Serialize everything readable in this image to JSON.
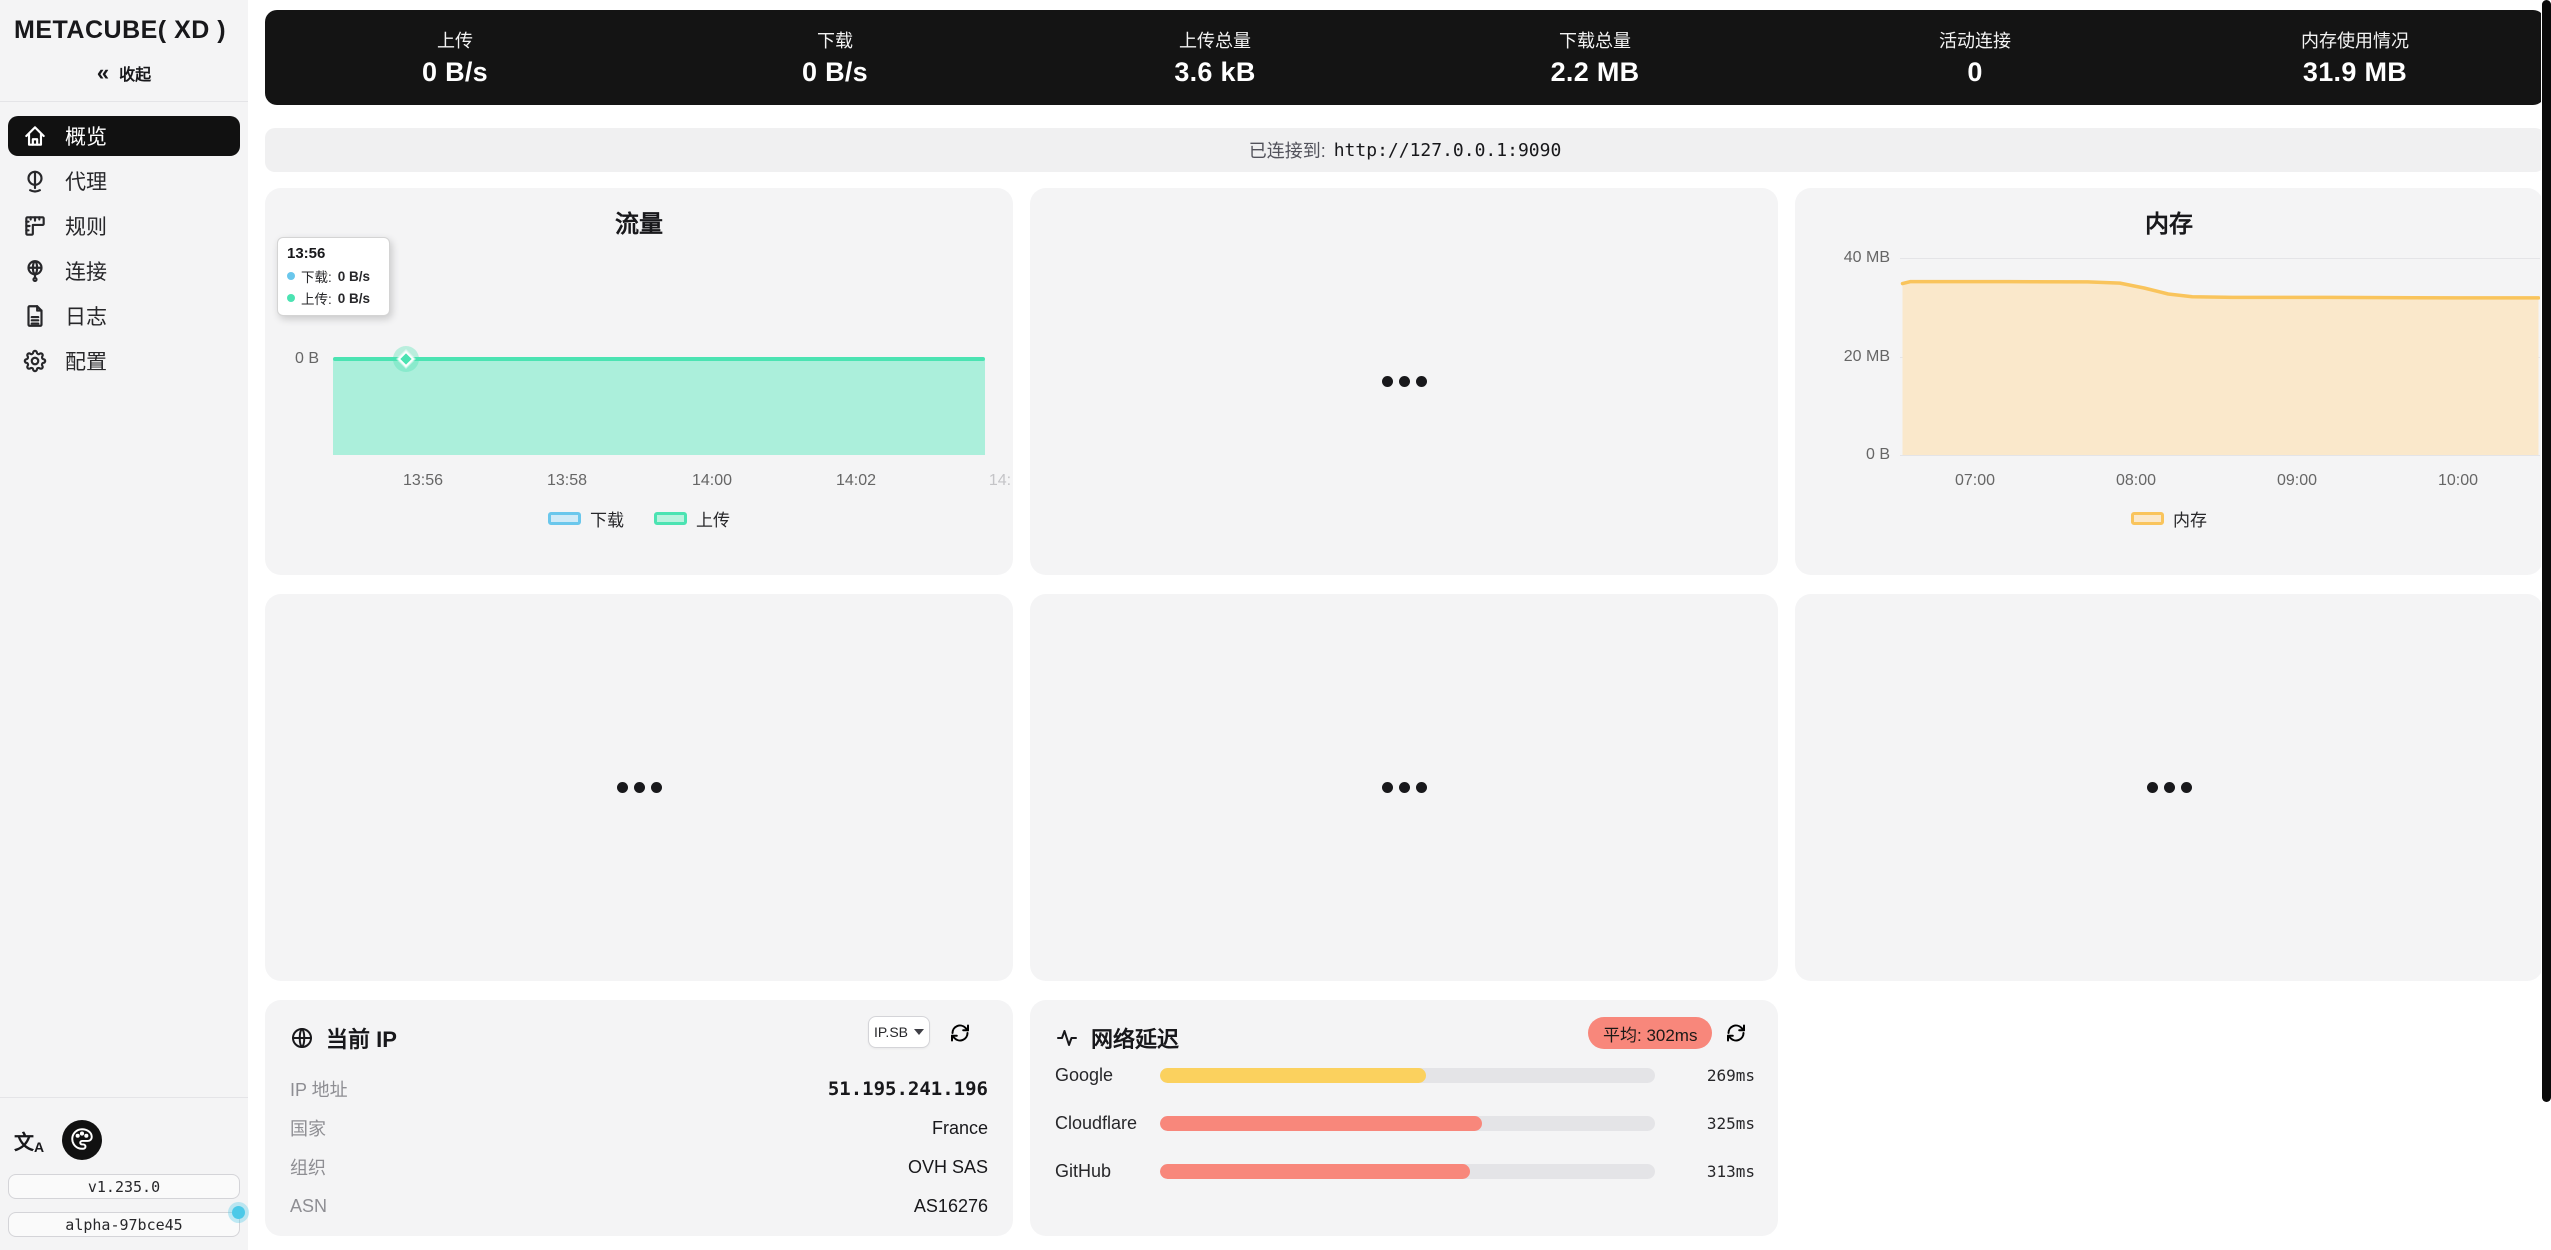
{
  "app": {
    "title": "METACUBE( XD )",
    "collapse_label": "收起"
  },
  "sidebar": {
    "items": [
      {
        "label": "概览",
        "icon": "home-icon",
        "active": true
      },
      {
        "label": "代理",
        "icon": "globe-stand-icon",
        "active": false
      },
      {
        "label": "规则",
        "icon": "ruler-icon",
        "active": false
      },
      {
        "label": "连接",
        "icon": "world-network-icon",
        "active": false
      },
      {
        "label": "日志",
        "icon": "file-text-icon",
        "active": false
      },
      {
        "label": "配置",
        "icon": "gear-icon",
        "active": false
      }
    ],
    "footer": {
      "version": "v1.235.0",
      "build": "alpha-97bce45"
    }
  },
  "statsbar": {
    "items": [
      {
        "label": "上传",
        "value": "0 B/s"
      },
      {
        "label": "下载",
        "value": "0 B/s"
      },
      {
        "label": "上传总量",
        "value": "3.6 kB"
      },
      {
        "label": "下载总量",
        "value": "2.2 MB"
      },
      {
        "label": "活动连接",
        "value": "0"
      },
      {
        "label": "内存使用情况",
        "value": "31.9 MB"
      }
    ]
  },
  "connection": {
    "prefix": "已连接到:",
    "url": "http://127.0.0.1:9090"
  },
  "ip_card": {
    "title": "当前 IP",
    "provider": "IP.SB",
    "rows": [
      {
        "label": "IP 地址",
        "value": "51.195.241.196"
      },
      {
        "label": "国家",
        "value": "France"
      },
      {
        "label": "组织",
        "value": "OVH SAS"
      },
      {
        "label": "ASN",
        "value": "AS16276"
      }
    ]
  },
  "colors": {
    "active_item_bg": "#111111",
    "topbar_bg": "#141414",
    "accent_teal": "#4be3b2",
    "accent_blue": "#6ac7ec",
    "accent_amber": "#f9c45c",
    "accent_yellow": "#fbd15e",
    "accent_salmon": "#f8877b",
    "update_dot": "#4cc9e8"
  },
  "chart_data": [
    {
      "id": "traffic",
      "type": "area",
      "title": "流量",
      "y_label": "0 B",
      "x_ticks": [
        "13:56",
        "13:58",
        "14:00",
        "14:02",
        "14:"
      ],
      "series": [
        {
          "name": "下载",
          "unit": "B/s",
          "color": "#6ac7ec",
          "fill": "#cfeaf7",
          "values": [
            0,
            0,
            0,
            0,
            0,
            0,
            0,
            0,
            0,
            0
          ]
        },
        {
          "name": "上传",
          "unit": "B/s",
          "color": "#4be3b2",
          "fill": "#abefdb",
          "values": [
            0,
            0,
            0,
            0,
            0,
            0,
            0,
            0,
            0,
            0
          ]
        }
      ],
      "tooltip": {
        "time": "13:56",
        "rows": [
          {
            "label": "下载:",
            "value": "0 B/s",
            "color": "#6ac7ec"
          },
          {
            "label": "上传:",
            "value": "0 B/s",
            "color": "#4be3b2"
          }
        ]
      },
      "legend": [
        {
          "label": "下载",
          "line": "#6ac7ec",
          "fill": "#cfeaf7"
        },
        {
          "label": "上传",
          "line": "#4be3b2",
          "fill": "#b9f2de"
        }
      ]
    },
    {
      "id": "memory",
      "type": "area",
      "title": "内存",
      "ylim_mb": [
        0,
        40
      ],
      "y_ticks": [
        "40 MB",
        "20 MB",
        "0 B"
      ],
      "x_ticks": [
        "07:00",
        "08:00",
        "09:00",
        "10:00"
      ],
      "series": [
        {
          "name": "内存",
          "color": "#f9c45c",
          "fill": "#fae8cb",
          "points_time_mb": [
            [
              6.55,
              34.8
            ],
            [
              6.6,
              35.2
            ],
            [
              7.2,
              35.2
            ],
            [
              7.7,
              35.15
            ],
            [
              7.9,
              34.9
            ],
            [
              8.05,
              33.9
            ],
            [
              8.2,
              32.7
            ],
            [
              8.35,
              32.15
            ],
            [
              8.6,
              32.0
            ],
            [
              9.2,
              32.0
            ],
            [
              10.0,
              31.9
            ],
            [
              10.5,
              31.9
            ]
          ]
        }
      ],
      "legend": [
        {
          "label": "内存",
          "line": "#f9c45c",
          "fill": "#fae8cb"
        }
      ]
    },
    {
      "id": "latency",
      "type": "bar",
      "title": "网络延迟",
      "average_label": "平均: 302ms",
      "max_ms": 500,
      "bars": [
        {
          "name": "Google",
          "ms": 269,
          "display": "269ms",
          "color": "#fbd15e"
        },
        {
          "name": "Cloudflare",
          "ms": 325,
          "display": "325ms",
          "color": "#f8877b"
        },
        {
          "name": "GitHub",
          "ms": 313,
          "display": "313ms",
          "color": "#f8877b"
        }
      ]
    }
  ]
}
